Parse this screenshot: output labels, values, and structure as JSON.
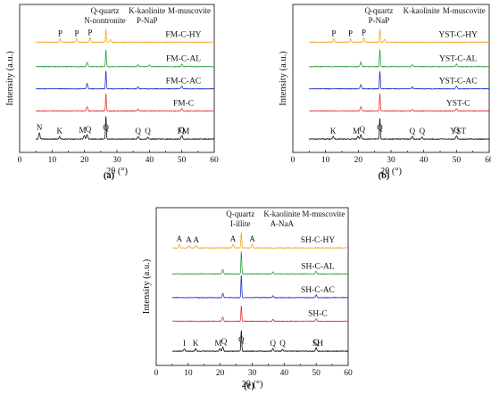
{
  "chart_data": [
    {
      "type": "line",
      "panel_label": "(a)",
      "xlabel": "2θ (°)",
      "ylabel": "Intensity (a.u.)",
      "xlim": [
        0,
        60
      ],
      "x_ticks": [
        0,
        10,
        20,
        30,
        40,
        50,
        60
      ],
      "legend": {
        "placement": "top",
        "col1": [
          "Q-quartz",
          "N-nontronite"
        ],
        "col2": [
          "K-kaolinite",
          "P-NaP"
        ],
        "col3": [
          "M-muscovite"
        ]
      },
      "series": [
        {
          "name": "FM-C-HY",
          "color": "#f5a623",
          "peaks": [
            [
              12.5,
              4
            ],
            [
              17.6,
              4
            ],
            [
              21.7,
              5
            ],
            [
              26.6,
              15
            ],
            [
              28,
              3
            ]
          ],
          "annotations": [
            {
              "x": 12.5,
              "label": "P"
            },
            {
              "x": 17.6,
              "label": "P"
            },
            {
              "x": 21.7,
              "label": "P"
            }
          ]
        },
        {
          "name": "FM-C-AL",
          "color": "#2e9e3c",
          "peaks": [
            [
              20.8,
              5
            ],
            [
              26.6,
              19
            ],
            [
              36.5,
              2
            ],
            [
              40,
              2
            ],
            [
              50,
              3
            ]
          ],
          "annotations": []
        },
        {
          "name": "FM-C-AC",
          "color": "#2233cc",
          "peaks": [
            [
              20.8,
              6
            ],
            [
              26.6,
              21
            ],
            [
              36.5,
              2
            ],
            [
              50,
              3
            ]
          ],
          "annotations": []
        },
        {
          "name": "FM-C",
          "color": "#e0393e",
          "peaks": [
            [
              20.8,
              5
            ],
            [
              26.6,
              20
            ],
            [
              36.5,
              2
            ],
            [
              50,
              3
            ]
          ],
          "annotations": []
        },
        {
          "name": "FM",
          "color": "#111111",
          "peaks": [
            [
              6.1,
              7
            ],
            [
              12.3,
              3
            ],
            [
              19.9,
              4
            ],
            [
              20.8,
              5
            ],
            [
              26.6,
              26
            ],
            [
              36.5,
              3
            ],
            [
              39.5,
              2
            ],
            [
              50,
              4
            ]
          ],
          "annotations": [
            {
              "x": 6.1,
              "label": "N"
            },
            {
              "x": 12.3,
              "label": "K"
            },
            {
              "x": 19.4,
              "label": "M"
            },
            {
              "x": 21.2,
              "label": "Q"
            },
            {
              "x": 26.6,
              "label": "Q"
            },
            {
              "x": 36.5,
              "label": "Q"
            },
            {
              "x": 39.5,
              "label": "Q"
            },
            {
              "x": 50,
              "label": "Q"
            }
          ]
        }
      ]
    },
    {
      "type": "line",
      "panel_label": "(b)",
      "xlabel": "2θ (°)",
      "ylabel": "Intensity (a.u.)",
      "xlim": [
        0,
        60
      ],
      "x_ticks": [
        0,
        10,
        20,
        30,
        40,
        50,
        60
      ],
      "legend": {
        "placement": "top",
        "col1": [
          "Q-quartz",
          "P-NaP"
        ],
        "col2": [
          "K-kaolinite"
        ],
        "col3": [
          "M-muscovite"
        ]
      },
      "series": [
        {
          "name": "YST-C-HY",
          "color": "#f5a623",
          "peaks": [
            [
              12.5,
              4
            ],
            [
              17.6,
              4
            ],
            [
              21.7,
              5
            ],
            [
              26.6,
              15
            ],
            [
              28,
              3
            ]
          ],
          "annotations": [
            {
              "x": 12.5,
              "label": "P"
            },
            {
              "x": 17.6,
              "label": "P"
            },
            {
              "x": 21.7,
              "label": "P"
            }
          ]
        },
        {
          "name": "YST-C-AL",
          "color": "#2e9e3c",
          "peaks": [
            [
              20.8,
              5
            ],
            [
              26.6,
              20
            ],
            [
              36.5,
              2
            ],
            [
              50,
              3
            ]
          ],
          "annotations": []
        },
        {
          "name": "YST-C-AC",
          "color": "#2233cc",
          "peaks": [
            [
              20.8,
              5
            ],
            [
              26.6,
              20
            ],
            [
              36.5,
              2
            ],
            [
              50,
              3
            ]
          ],
          "annotations": []
        },
        {
          "name": "YST-C",
          "color": "#e0393e",
          "peaks": [
            [
              20.8,
              5
            ],
            [
              26.6,
              20
            ],
            [
              36.5,
              2
            ],
            [
              50,
              3
            ]
          ],
          "annotations": []
        },
        {
          "name": "YST",
          "color": "#111111",
          "peaks": [
            [
              12.3,
              3
            ],
            [
              19.9,
              3
            ],
            [
              20.8,
              5
            ],
            [
              26.6,
              24
            ],
            [
              36.5,
              3
            ],
            [
              39.5,
              2
            ],
            [
              50,
              4
            ]
          ],
          "annotations": [
            {
              "x": 12.3,
              "label": "K"
            },
            {
              "x": 19.4,
              "label": "M"
            },
            {
              "x": 21.2,
              "label": "Q"
            },
            {
              "x": 26.6,
              "label": "Q"
            },
            {
              "x": 36.5,
              "label": "Q"
            },
            {
              "x": 39.5,
              "label": "Q"
            },
            {
              "x": 50,
              "label": "Q"
            }
          ]
        }
      ]
    },
    {
      "type": "line",
      "panel_label": "(c)",
      "xlabel": "2θ (°)",
      "ylabel": "Intensity (a.u.)",
      "xlim": [
        0,
        60
      ],
      "x_ticks": [
        0,
        10,
        20,
        30,
        40,
        50,
        60
      ],
      "legend": {
        "placement": "top",
        "col1": [
          "Q-quartz",
          "I-illite"
        ],
        "col2": [
          "K-kaolinite",
          "A-NaA"
        ],
        "col3": [
          "M-muscovite"
        ]
      },
      "series": [
        {
          "name": "SH-C-HY",
          "color": "#f5a623",
          "peaks": [
            [
              7.2,
              4
            ],
            [
              10.2,
              3
            ],
            [
              12.5,
              3
            ],
            [
              24,
              4
            ],
            [
              26.6,
              18
            ],
            [
              30,
              4
            ]
          ],
          "annotations": [
            {
              "x": 7.2,
              "label": "A"
            },
            {
              "x": 10.2,
              "label": "A"
            },
            {
              "x": 12.5,
              "label": "A"
            },
            {
              "x": 24,
              "label": "A"
            },
            {
              "x": 30,
              "label": "A"
            }
          ]
        },
        {
          "name": "SH-C-AL",
          "color": "#2e9e3c",
          "peaks": [
            [
              20.8,
              5
            ],
            [
              26.6,
              26
            ],
            [
              36.5,
              2
            ],
            [
              50,
              3
            ]
          ],
          "annotations": []
        },
        {
          "name": "SH-C-AC",
          "color": "#2233cc",
          "peaks": [
            [
              20.8,
              5
            ],
            [
              26.6,
              26
            ],
            [
              36.5,
              2
            ],
            [
              50,
              3
            ]
          ],
          "annotations": []
        },
        {
          "name": "SH-C",
          "color": "#e0393e",
          "peaks": [
            [
              20.8,
              5
            ],
            [
              26.6,
              18
            ],
            [
              36.5,
              2
            ],
            [
              50,
              3
            ]
          ],
          "annotations": []
        },
        {
          "name": "SH",
          "color": "#111111",
          "peaks": [
            [
              8.8,
              3
            ],
            [
              12.3,
              3
            ],
            [
              19.9,
              3
            ],
            [
              20.8,
              5
            ],
            [
              26.6,
              24
            ],
            [
              36.5,
              3
            ],
            [
              39.5,
              2
            ],
            [
              50,
              4
            ]
          ],
          "annotations": [
            {
              "x": 8.8,
              "label": "I"
            },
            {
              "x": 12.3,
              "label": "K"
            },
            {
              "x": 19.4,
              "label": "M"
            },
            {
              "x": 21.2,
              "label": "Q"
            },
            {
              "x": 26.6,
              "label": "Q"
            },
            {
              "x": 36.5,
              "label": "Q"
            },
            {
              "x": 39.5,
              "label": "Q"
            },
            {
              "x": 50,
              "label": "Q"
            }
          ]
        }
      ]
    }
  ]
}
